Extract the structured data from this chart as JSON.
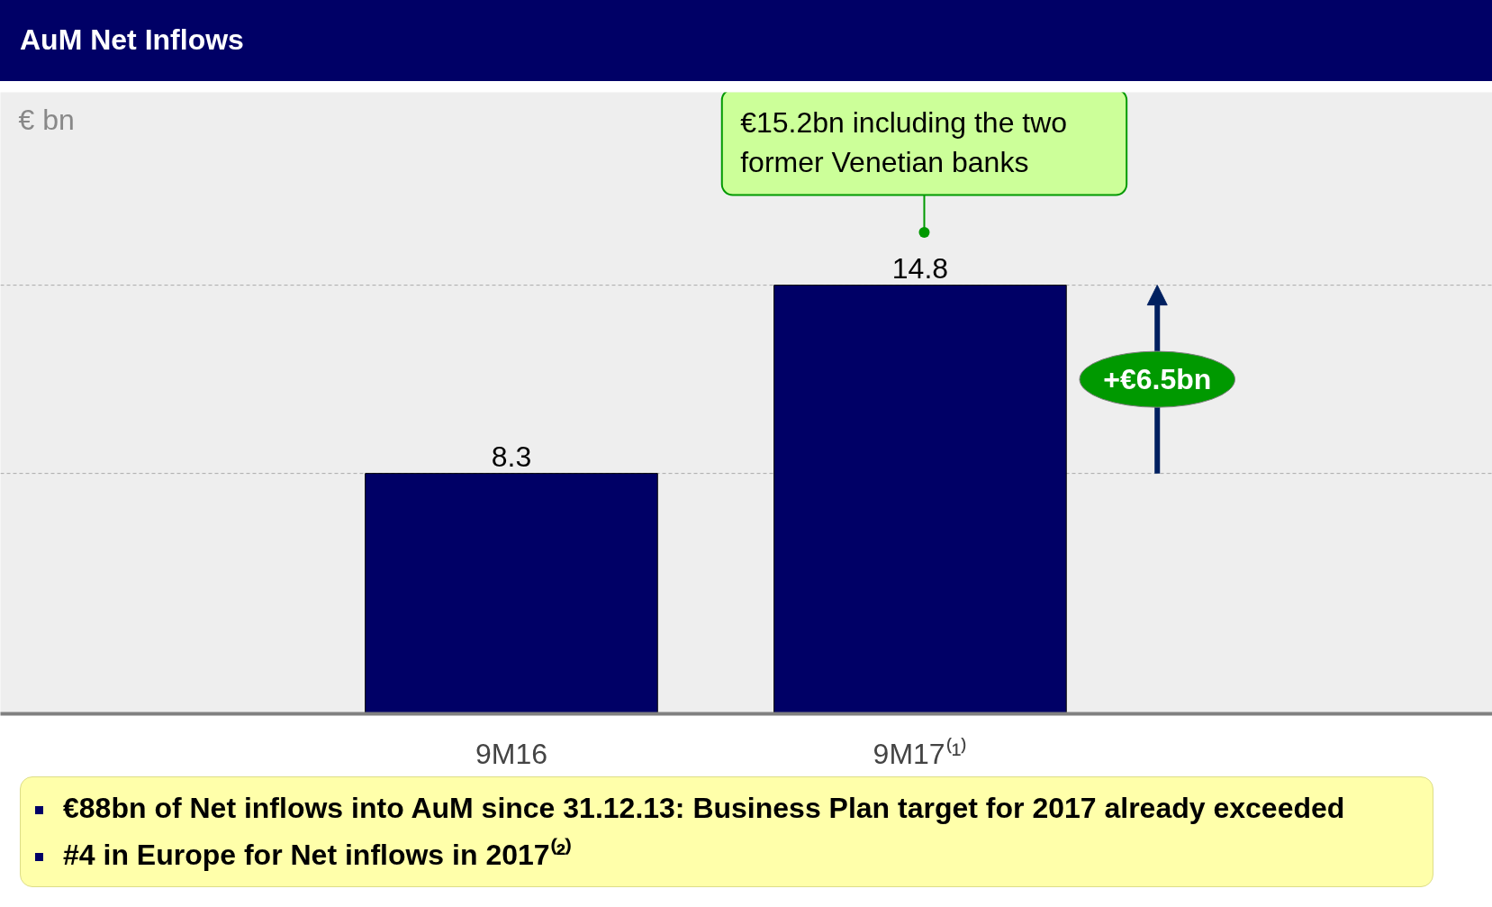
{
  "chart_data": {
    "type": "bar",
    "title": "AuM Net Inflows",
    "categories": [
      "9M16",
      "9M17⁽¹⁾"
    ],
    "values": [
      8.3,
      14.8
    ],
    "color": "#000066",
    "data_labels": true,
    "grid": false,
    "ref_lines": [
      {
        "axis": "y",
        "value": 8.3,
        "color": "#aaaaaa",
        "line_style": "dashed"
      },
      {
        "axis": "y",
        "value": 14.8,
        "color": "#aaaaaa",
        "line_style": "dashed"
      }
    ],
    "annotations": [
      "€ bn",
      "€15.2bn including the two former Venetian banks",
      "+€6.5bn",
      "€88bn of Net inflows into AuM since 31.12.13: Business Plan target for 2017 already exceeded",
      "#4 in Europe for Net inflows in 2017⁽²⁾"
    ]
  }
}
